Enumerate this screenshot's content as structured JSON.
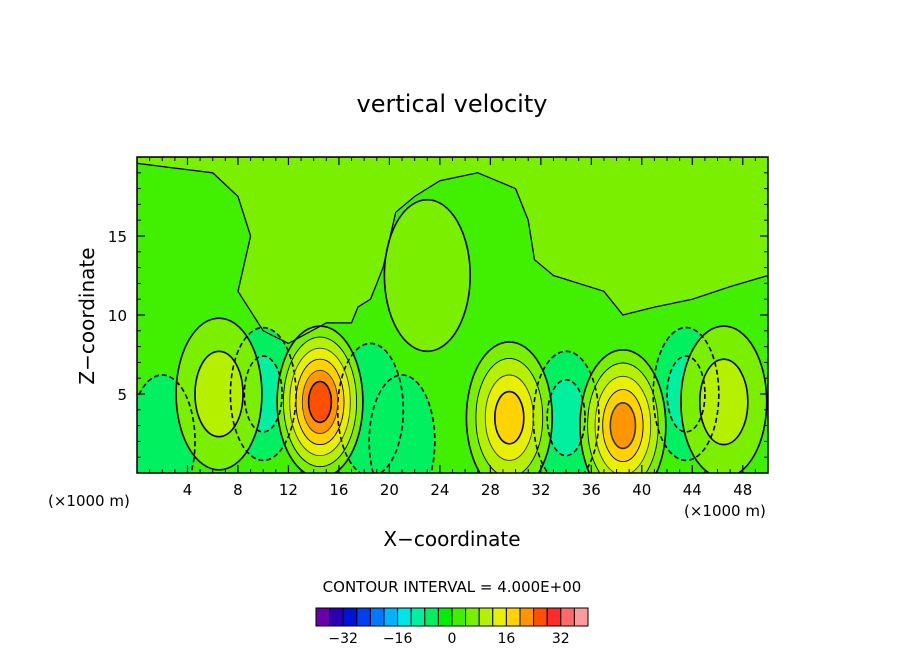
{
  "chart_data": {
    "type": "contour",
    "title": "vertical velocity",
    "xlabel": "X−coordinate",
    "ylabel": "Z−coordinate",
    "x_unit_left": "(×1000 m)",
    "x_unit_right": "(×1000 m)",
    "xlim": [
      0,
      50
    ],
    "ylim": [
      0,
      20
    ],
    "xticks": [
      4,
      8,
      12,
      16,
      20,
      24,
      28,
      32,
      36,
      40,
      44,
      48
    ],
    "yticks": [
      5,
      10,
      15
    ],
    "contour_interval_text": "CONTOUR INTERVAL = 4.000E+00",
    "colorbar": {
      "levels": [
        -36,
        -32,
        -28,
        -24,
        -20,
        -16,
        -12,
        -8,
        -4,
        0,
        4,
        8,
        12,
        16,
        20,
        24,
        28,
        32,
        36
      ],
      "tick_labels": [
        "−32",
        "−16",
        "0",
        "16",
        "32"
      ],
      "tick_values": [
        -32,
        -16,
        0,
        16,
        32
      ],
      "colors": [
        "#6a00a8",
        "#2a00b4",
        "#0012d8",
        "#0040f0",
        "#0078ff",
        "#00b4ff",
        "#00e6e6",
        "#00f0a0",
        "#00f060",
        "#00f000",
        "#40f000",
        "#7af000",
        "#b4f000",
        "#e6f000",
        "#ffd200",
        "#ff9600",
        "#ff5000",
        "#ff2a2a",
        "#ff6a6a",
        "#ff9a9a"
      ]
    },
    "updraft_cores": [
      {
        "x": 14.5,
        "z": 4.5,
        "peak": 24
      },
      {
        "x": 29.5,
        "z": 3.5,
        "peak": 16
      },
      {
        "x": 38.5,
        "z": 3.0,
        "peak": 20
      },
      {
        "x": 46.5,
        "z": 4.5,
        "peak": 8
      },
      {
        "x": 6.5,
        "z": 5.0,
        "peak": 8
      },
      {
        "x": 23.0,
        "z": 12.5,
        "peak": 4
      }
    ],
    "downdraft_cores": [
      {
        "x": 10.0,
        "z": 5.0,
        "peak": -8
      },
      {
        "x": 34.0,
        "z": 3.5,
        "peak": -8
      },
      {
        "x": 43.5,
        "z": 5.0,
        "peak": -8
      },
      {
        "x": 18.5,
        "z": 4.0,
        "peak": -4
      },
      {
        "x": 2.0,
        "z": 2.0,
        "peak": -4
      },
      {
        "x": 21.0,
        "z": 2.0,
        "peak": -4
      }
    ],
    "background_value": 0,
    "upper_region_value": 4
  }
}
